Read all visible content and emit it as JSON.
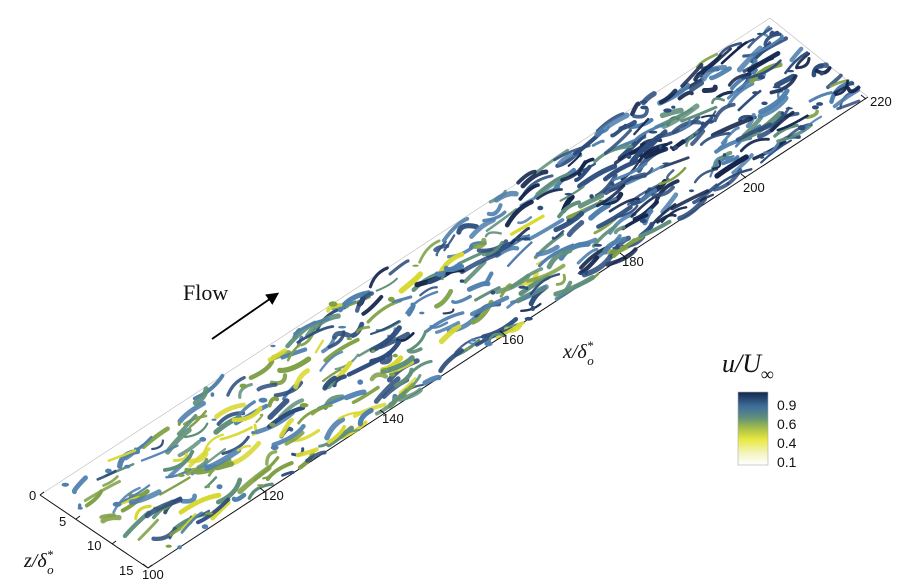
{
  "flow_label": "Flow",
  "x_axis": {
    "label_main": "x/δ",
    "label_sup": "*",
    "label_sub": "o",
    "ticks": [
      "100",
      "120",
      "140",
      "160",
      "180",
      "200",
      "220"
    ]
  },
  "z_axis": {
    "label_main": "z/δ",
    "label_sup": "*",
    "label_sub": "o",
    "ticks": [
      "0",
      "5",
      "10",
      "15"
    ]
  },
  "colorbar": {
    "title_main": "u/U",
    "title_sub": "∞",
    "ticks": [
      "0.9",
      "0.6",
      "0.4",
      "0.1"
    ],
    "colors": [
      "#ffffff",
      "#f2f2c0",
      "#e8e840",
      "#b8c840",
      "#5f8f7a",
      "#3f6f9a",
      "#2d4d7c",
      "#14264d"
    ]
  },
  "colors": {
    "dark_navy": "#14264d",
    "navy": "#2d4d7c",
    "steel_blue": "#4f7fae",
    "teal": "#5f8f7a",
    "olive_green": "#7fa045",
    "yellow": "#d8d830"
  }
}
